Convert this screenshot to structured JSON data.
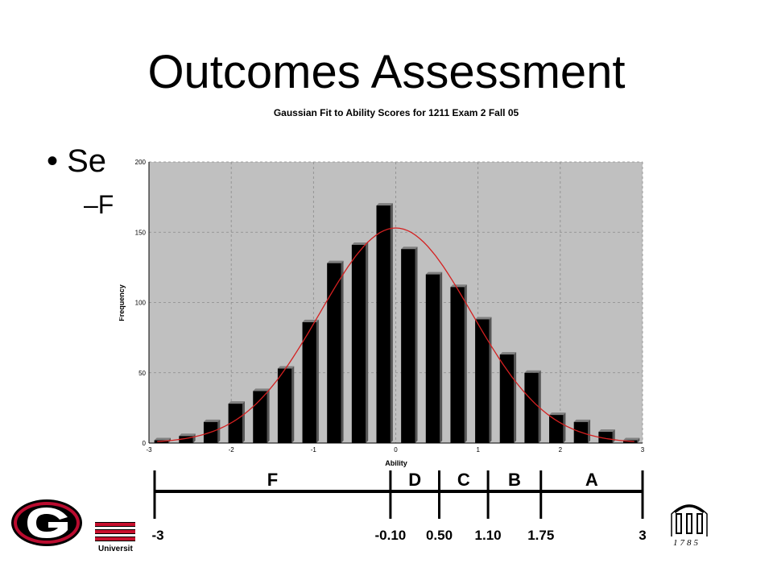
{
  "slide": {
    "title": "Outcomes Assessment",
    "bullet_main": "Se",
    "bullet_sub": "–F",
    "university_label": "Universit",
    "seal_year": "1785"
  },
  "chart_data": {
    "type": "bar",
    "title": "Gaussian Fit to Ability Scores for 1211 Exam 2 Fall 05",
    "xlabel": "Ability",
    "ylabel": "Frequency",
    "xlim": [
      -3,
      3
    ],
    "ylim": [
      0,
      200
    ],
    "x_ticks": [
      -3,
      -2,
      -1,
      0,
      1,
      2,
      3
    ],
    "y_ticks": [
      0,
      50,
      100,
      150,
      200
    ],
    "grid": true,
    "bar_centers": [
      -2.85,
      -2.55,
      -2.25,
      -1.95,
      -1.65,
      -1.35,
      -1.05,
      -0.75,
      -0.45,
      -0.15,
      0.15,
      0.45,
      0.75,
      1.05,
      1.35,
      1.65,
      1.95,
      2.25,
      2.55,
      2.85
    ],
    "values": [
      2,
      5,
      15,
      28,
      37,
      53,
      86,
      128,
      141,
      169,
      138,
      120,
      111,
      88,
      63,
      50,
      20,
      15,
      8,
      2
    ],
    "fit_curve": {
      "type": "gaussian",
      "mean": 0.0,
      "sd": 0.92,
      "peak": 153,
      "color": "#d42020"
    },
    "colors": {
      "plot_bg": "#c0c0c0",
      "bar": "#000000",
      "bar_top": "#808080",
      "grid": "#8a8a8a"
    }
  },
  "grade_scale": {
    "segments": [
      {
        "grade": "F",
        "from": -3,
        "to": -0.1
      },
      {
        "grade": "D",
        "from": -0.1,
        "to": 0.5
      },
      {
        "grade": "C",
        "from": 0.5,
        "to": 1.1
      },
      {
        "grade": "B",
        "from": 1.1,
        "to": 1.75
      },
      {
        "grade": "A",
        "from": 1.75,
        "to": 3
      }
    ],
    "cutoff_labels": [
      "-3",
      "-0.10",
      "0.50",
      "1.10",
      "1.75",
      "3"
    ]
  }
}
